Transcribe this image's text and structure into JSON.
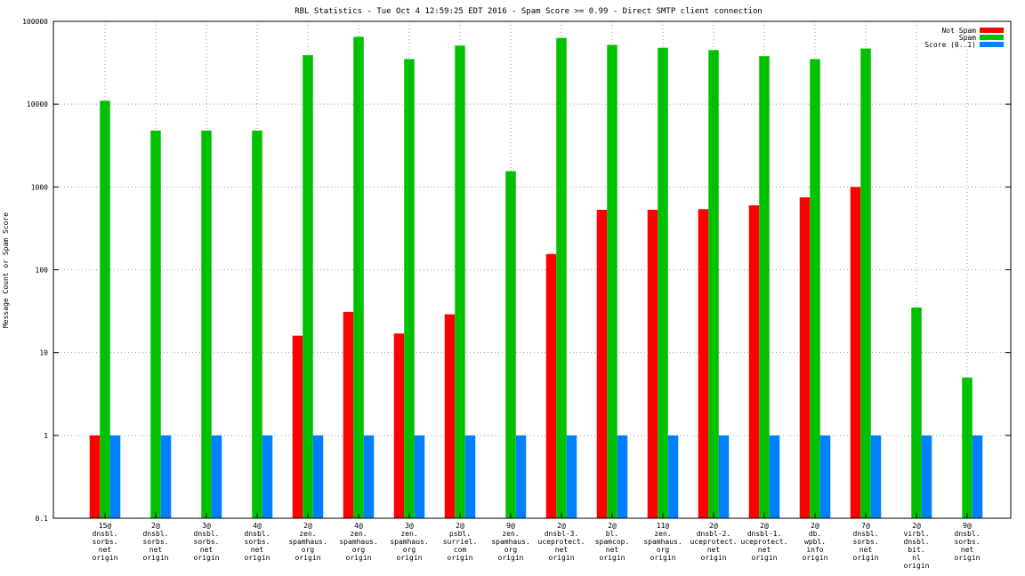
{
  "chart_data": {
    "type": "bar",
    "title": "RBL Statistics - Tue Oct  4 12:59:25 EDT 2016 - Spam Score >= 0.99 - Direct SMTP client connection",
    "xlabel": "",
    "ylabel": "Message Count or Spam Score",
    "y_scale": "log",
    "ylim": [
      0.1,
      100000
    ],
    "y_ticks": [
      "0.1",
      "1",
      "10",
      "100",
      "1000",
      "10000",
      "100000"
    ],
    "grid": true,
    "legend_position": "top-right",
    "categories": [
      [
        "15@",
        "dnsbl.",
        "sorbs.",
        "net",
        "origin"
      ],
      [
        "2@",
        "dnsbl.",
        "sorbs.",
        "net",
        "origin"
      ],
      [
        "3@",
        "dnsbl.",
        "sorbs.",
        "net",
        "origin"
      ],
      [
        "4@",
        "dnsbl.",
        "sorbs.",
        "net",
        "origin"
      ],
      [
        "2@",
        "zen.",
        "spamhaus.",
        "org",
        "origin"
      ],
      [
        "4@",
        "zen.",
        "spamhaus.",
        "org",
        "origin"
      ],
      [
        "3@",
        "zen.",
        "spamhaus.",
        "org",
        "origin"
      ],
      [
        "2@",
        "psbl.",
        "surriel.",
        "com",
        "origin"
      ],
      [
        "9@",
        "zen.",
        "spamhaus.",
        "org",
        "origin"
      ],
      [
        "2@",
        "dnsbl-3.",
        "uceprotect.",
        "net",
        "origin"
      ],
      [
        "2@",
        "bl.",
        "spamcop.",
        "net",
        "origin"
      ],
      [
        "11@",
        "zen.",
        "spamhaus.",
        "org",
        "origin"
      ],
      [
        "2@",
        "dnsbl-2.",
        "uceprotect.",
        "net",
        "origin"
      ],
      [
        "2@",
        "dnsbl-1.",
        "uceprotect.",
        "net",
        "origin"
      ],
      [
        "2@",
        "db.",
        "wpbl.",
        "info",
        "origin"
      ],
      [
        "7@",
        "dnsbl.",
        "sorbs.",
        "net",
        "origin"
      ],
      [
        "2@",
        "virbl.",
        "dnsbl.",
        "bit.",
        "nl",
        "origin"
      ],
      [
        "9@",
        "dnsbl.",
        "sorbs.",
        "net",
        "origin"
      ]
    ],
    "series": [
      {
        "name": "Not Spam",
        "color": "#ff0000",
        "values": [
          1,
          null,
          null,
          null,
          16,
          31,
          17,
          29,
          null,
          155,
          530,
          530,
          540,
          600,
          750,
          1000,
          null,
          null
        ]
      },
      {
        "name": "Spam",
        "color": "#00c000",
        "values": [
          11000,
          4800,
          4800,
          4800,
          39000,
          65000,
          35000,
          51000,
          1550,
          63000,
          52000,
          48000,
          45000,
          38000,
          35000,
          47000,
          35,
          5
        ]
      },
      {
        "name": "Score (0..1)",
        "color": "#0080ff",
        "values": [
          1,
          1,
          1,
          1,
          1,
          1,
          1,
          1,
          1,
          1,
          1,
          1,
          1,
          1,
          1,
          1,
          1,
          1
        ]
      }
    ]
  }
}
